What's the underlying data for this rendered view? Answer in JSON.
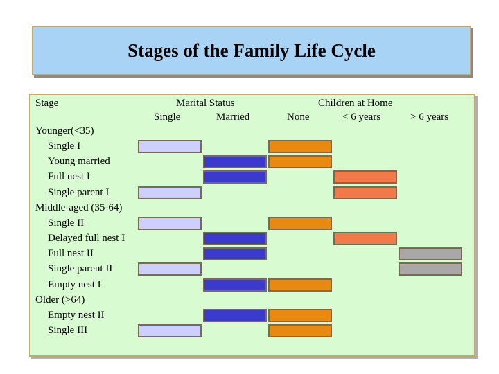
{
  "title": "Stages of the Family Life Cycle",
  "headers": {
    "stage": "Stage",
    "marital_status": "Marital Status",
    "single": "Single",
    "married": "Married",
    "children_at_home": "Children at Home",
    "none": "None",
    "under6": "< 6 years",
    "over6": "> 6 years"
  },
  "colors": {
    "single": "#cccfff",
    "married": "#3a3acc",
    "children_none": "#e88a10",
    "children_under6": "#f27a48",
    "children_over6": "#a8a8a8"
  },
  "stages": [
    {
      "label": "Younger(<35)",
      "group": true
    },
    {
      "label": "Single I",
      "marital": "single",
      "children": "none"
    },
    {
      "label": "Young married",
      "marital": "married",
      "children": "none"
    },
    {
      "label": "Full nest I",
      "marital": "married",
      "children": "under6"
    },
    {
      "label": "Single parent I",
      "marital": "single",
      "children": "under6"
    },
    {
      "label": "Middle-aged (35-64)",
      "group": true
    },
    {
      "label": "Single II",
      "marital": "single",
      "children": "none"
    },
    {
      "label": "Delayed full nest I",
      "marital": "married",
      "children": "under6"
    },
    {
      "label": "Full nest II",
      "marital": "married",
      "children": "over6"
    },
    {
      "label": "Single parent II",
      "marital": "single",
      "children": "over6"
    },
    {
      "label": "Empty nest I",
      "marital": "married",
      "children": "none"
    },
    {
      "label": "Older (>64)",
      "group": true
    },
    {
      "label": "Empty nest II",
      "marital": "married",
      "children": "none"
    },
    {
      "label": "Single III",
      "marital": "single",
      "children": "none"
    }
  ]
}
